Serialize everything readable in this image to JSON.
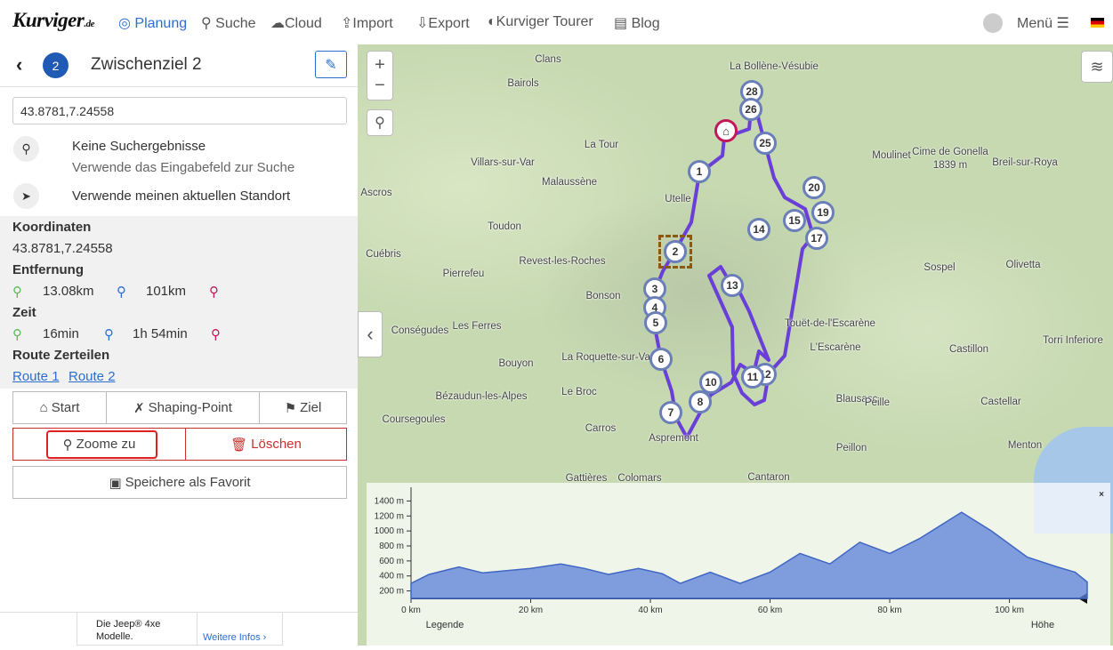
{
  "navbar": {
    "logo": "Kurviger",
    "logo_suffix": ".de",
    "items": [
      "Planung",
      "Suche",
      "Cloud",
      "Import",
      "Export",
      "Kurviger Tourer",
      "Blog"
    ],
    "menu": "Menü"
  },
  "panel": {
    "badge": "2",
    "title": "Zwischenziel 2",
    "input": "43.8781,7.24558",
    "search": {
      "no_results": "Keine Suchergebnisse",
      "hint": "Verwende das Eingabefeld zur Suche",
      "locate": "Verwende meinen aktuellen Standort"
    },
    "details": {
      "coords_label": "Koordinaten",
      "coords": "43.8781,7.24558",
      "distance_label": "Entfernung",
      "distance_from": "13.08km",
      "distance_to": "101km",
      "time_label": "Zeit",
      "time_from": "16min",
      "time_to": "1h 54min",
      "split_label": "Route Zerteilen",
      "routes": [
        "Route 1",
        "Route 2"
      ]
    },
    "buttons": {
      "start": "Start",
      "shaping": "Shaping-Point",
      "ziel": "Ziel",
      "zoom": "Zoome zu",
      "delete": "Löschen",
      "favorite": "Speichere als Favorit"
    }
  },
  "ad": {
    "text": "Die Jeep® 4xe Modelle.",
    "link": "Weitere Infos"
  },
  "map": {
    "places": [
      "Clans",
      "Bairols",
      "La Bollène-Vésubie",
      "La Tour",
      "Villars-sur-Var",
      "Malaussène",
      "Utelle",
      "Ascros",
      "Toudon",
      "Cuébris",
      "Revest-les-Roches",
      "Pierrefeu",
      "Bonson",
      "Conségudes",
      "Les Ferres",
      "La Roquette-sur-Var",
      "Bouyon",
      "Bézaudun-les-Alpes",
      "Le Broc",
      "Coursegoules",
      "Carros",
      "Gattières",
      "Colomars",
      "Aspremont",
      "Cantaron",
      "Moulinet",
      "Cime de Gonella",
      "1839 m",
      "Breil-sur-Roya",
      "Sospel",
      "Olivetta",
      "Touët-de-l'Escarène",
      "L'Escarène",
      "Castillon",
      "Torri Inferiore",
      "Blausasc",
      "Peille",
      "Castellar",
      "Peillon",
      "Menton"
    ],
    "markers": [
      "28",
      "26",
      "25",
      "1",
      "20",
      "19",
      "15",
      "17",
      "14",
      "2",
      "13",
      "3",
      "4",
      "5",
      "6",
      "12",
      "10",
      "11",
      "8",
      "7"
    ]
  },
  "elevation": {
    "type": "area",
    "legend": "Legende",
    "axis_label": "Höhe",
    "x": [
      0,
      3,
      8,
      12,
      16,
      20,
      25,
      29,
      33,
      38,
      42,
      45,
      50,
      55,
      60,
      65,
      70,
      75,
      80,
      85,
      89,
      92,
      97,
      103,
      108,
      111,
      113
    ],
    "values": [
      300,
      420,
      520,
      440,
      470,
      500,
      560,
      500,
      420,
      500,
      430,
      300,
      450,
      300,
      450,
      700,
      560,
      850,
      700,
      900,
      1100,
      1250,
      1000,
      650,
      520,
      450,
      320
    ],
    "xlim": [
      0,
      113
    ],
    "ylim": [
      100,
      1500
    ],
    "xticks": [
      {
        "value": 0,
        "label": "0 km"
      },
      {
        "value": 20,
        "label": "20 km"
      },
      {
        "value": 40,
        "label": "40 km"
      },
      {
        "value": 60,
        "label": "60 km"
      },
      {
        "value": 80,
        "label": "80 km"
      },
      {
        "value": 100,
        "label": "100 km"
      }
    ],
    "yticks": [
      {
        "value": 200,
        "label": "200 m"
      },
      {
        "value": 400,
        "label": "400 m"
      },
      {
        "value": 600,
        "label": "600 m"
      },
      {
        "value": 800,
        "label": "800 m"
      },
      {
        "value": 1000,
        "label": "1000 m"
      },
      {
        "value": 1200,
        "label": "1200 m"
      },
      {
        "value": 1400,
        "label": "1400 m"
      }
    ]
  }
}
